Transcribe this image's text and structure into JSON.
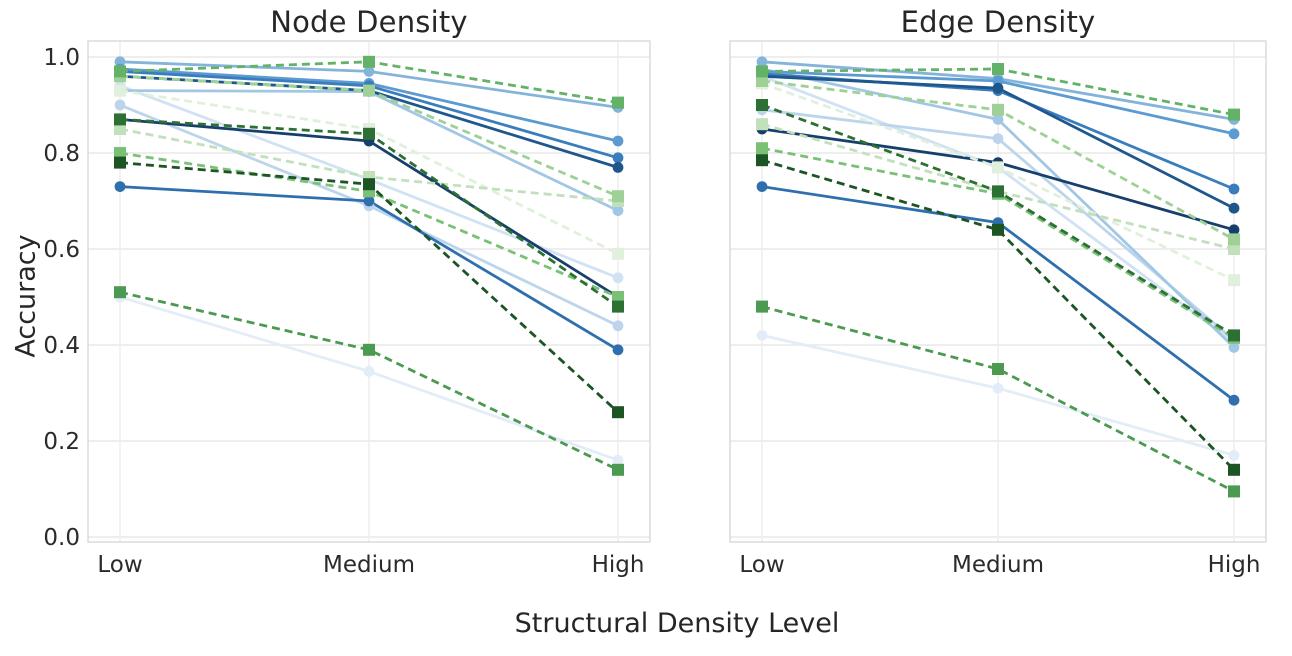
{
  "chart_data": {
    "type": "line",
    "categories": [
      "Low",
      "Medium",
      "High"
    ],
    "xlabel": "Structural Density Level",
    "ylabel": "Accuracy",
    "ylim": [
      0.0,
      1.0
    ],
    "yticks": [
      0.0,
      0.2,
      0.4,
      0.6,
      0.8,
      1.0
    ],
    "grid": true,
    "legend": "none",
    "style_note": "blue series = solid lines with circle markers; green series = dashed lines with square markers",
    "subplots": [
      {
        "title": "Node Density",
        "series": [
          {
            "name": "blue-1-palest",
            "color": "#e3edf8",
            "line": "solid",
            "marker": "circle",
            "values": [
              0.5,
              0.345,
              0.16
            ]
          },
          {
            "name": "blue-2-verylight",
            "color": "#d0e2f3",
            "line": "solid",
            "marker": "circle",
            "values": [
              0.94,
              0.745,
              0.54
            ]
          },
          {
            "name": "blue-3-pale",
            "color": "#bcd5ec",
            "line": "solid",
            "marker": "circle",
            "values": [
              0.9,
              0.69,
              0.44
            ]
          },
          {
            "name": "blue-4-light",
            "color": "#a2c7e5",
            "line": "solid",
            "marker": "circle",
            "values": [
              0.93,
              0.928,
              0.68
            ]
          },
          {
            "name": "blue-5-sky",
            "color": "#85b4da",
            "line": "solid",
            "marker": "circle",
            "values": [
              0.99,
              0.97,
              0.895
            ]
          },
          {
            "name": "blue-6-medium",
            "color": "#5b9bd1",
            "line": "solid",
            "marker": "circle",
            "values": [
              0.975,
              0.945,
              0.825
            ]
          },
          {
            "name": "blue-7",
            "color": "#3a7dbd",
            "line": "solid",
            "marker": "circle",
            "values": [
              0.97,
              0.94,
              0.79
            ]
          },
          {
            "name": "blue-8-strong",
            "color": "#2f6fae",
            "line": "solid",
            "marker": "circle",
            "values": [
              0.73,
              0.7,
              0.39
            ]
          },
          {
            "name": "blue-9-dark",
            "color": "#1f568c",
            "line": "solid",
            "marker": "circle",
            "values": [
              0.96,
              0.93,
              0.77
            ]
          },
          {
            "name": "blue-10-navy",
            "color": "#16406b",
            "line": "solid",
            "marker": "circle",
            "values": [
              0.87,
              0.825,
              0.5
            ]
          },
          {
            "name": "green-1-palest",
            "color": "#e1f0dc",
            "line": "dashed",
            "marker": "square",
            "values": [
              0.93,
              0.85,
              0.59
            ]
          },
          {
            "name": "green-2-pale",
            "color": "#c3e0bc",
            "line": "dashed",
            "marker": "square",
            "values": [
              0.85,
              0.75,
              0.7
            ]
          },
          {
            "name": "green-3-light",
            "color": "#9fd096",
            "line": "dashed",
            "marker": "square",
            "values": [
              0.96,
              0.93,
              0.71
            ]
          },
          {
            "name": "green-4-soft",
            "color": "#7ac176",
            "line": "dashed",
            "marker": "square",
            "values": [
              0.8,
              0.72,
              0.5
            ]
          },
          {
            "name": "green-5-medium",
            "color": "#63b267",
            "line": "dashed",
            "marker": "square",
            "values": [
              0.97,
              0.99,
              0.905
            ]
          },
          {
            "name": "green-6",
            "color": "#4c9a51",
            "line": "dashed",
            "marker": "square",
            "values": [
              0.51,
              0.39,
              0.14
            ]
          },
          {
            "name": "green-7-dark",
            "color": "#2d7034",
            "line": "dashed",
            "marker": "square",
            "values": [
              0.87,
              0.84,
              0.48
            ]
          },
          {
            "name": "green-8-forest",
            "color": "#1c5423",
            "line": "dashed",
            "marker": "square",
            "values": [
              0.78,
              0.735,
              0.26
            ]
          }
        ]
      },
      {
        "title": "Edge Density",
        "series": [
          {
            "name": "blue-1-palest",
            "color": "#e3edf8",
            "line": "solid",
            "marker": "circle",
            "values": [
              0.42,
              0.31,
              0.17
            ]
          },
          {
            "name": "blue-2-verylight",
            "color": "#d0e2f3",
            "line": "solid",
            "marker": "circle",
            "values": [
              0.96,
              0.77,
              0.405
            ]
          },
          {
            "name": "blue-3-pale",
            "color": "#bcd5ec",
            "line": "solid",
            "marker": "circle",
            "values": [
              0.89,
              0.83,
              0.41
            ]
          },
          {
            "name": "blue-4-light",
            "color": "#a2c7e5",
            "line": "solid",
            "marker": "circle",
            "values": [
              0.975,
              0.87,
              0.395
            ]
          },
          {
            "name": "blue-5-sky",
            "color": "#85b4da",
            "line": "solid",
            "marker": "circle",
            "values": [
              0.99,
              0.955,
              0.87
            ]
          },
          {
            "name": "blue-6-medium",
            "color": "#5b9bd1",
            "line": "solid",
            "marker": "circle",
            "values": [
              0.97,
              0.95,
              0.84
            ]
          },
          {
            "name": "blue-7",
            "color": "#3a7dbd",
            "line": "solid",
            "marker": "circle",
            "values": [
              0.965,
              0.93,
              0.725
            ]
          },
          {
            "name": "blue-8-strong",
            "color": "#2f6fae",
            "line": "solid",
            "marker": "circle",
            "values": [
              0.73,
              0.655,
              0.285
            ]
          },
          {
            "name": "blue-9-dark",
            "color": "#1f568c",
            "line": "solid",
            "marker": "circle",
            "values": [
              0.96,
              0.935,
              0.685
            ]
          },
          {
            "name": "blue-10-navy",
            "color": "#16406b",
            "line": "solid",
            "marker": "circle",
            "values": [
              0.85,
              0.78,
              0.64
            ]
          },
          {
            "name": "green-1-palest",
            "color": "#e1f0dc",
            "line": "dashed",
            "marker": "square",
            "values": [
              0.945,
              0.77,
              0.535
            ]
          },
          {
            "name": "green-2-pale",
            "color": "#c3e0bc",
            "line": "dashed",
            "marker": "square",
            "values": [
              0.86,
              0.72,
              0.6
            ]
          },
          {
            "name": "green-3-light",
            "color": "#9fd096",
            "line": "dashed",
            "marker": "square",
            "values": [
              0.95,
              0.89,
              0.62
            ]
          },
          {
            "name": "green-4-soft",
            "color": "#7ac176",
            "line": "dashed",
            "marker": "square",
            "values": [
              0.81,
              0.715,
              0.415
            ]
          },
          {
            "name": "green-5-medium",
            "color": "#63b267",
            "line": "dashed",
            "marker": "square",
            "values": [
              0.97,
              0.975,
              0.88
            ]
          },
          {
            "name": "green-6",
            "color": "#4c9a51",
            "line": "dashed",
            "marker": "square",
            "values": [
              0.48,
              0.35,
              0.095
            ]
          },
          {
            "name": "green-7-dark",
            "color": "#2d7034",
            "line": "dashed",
            "marker": "square",
            "values": [
              0.9,
              0.72,
              0.42
            ]
          },
          {
            "name": "green-8-forest",
            "color": "#1c5423",
            "line": "dashed",
            "marker": "square",
            "values": [
              0.785,
              0.64,
              0.14
            ]
          }
        ]
      }
    ]
  }
}
